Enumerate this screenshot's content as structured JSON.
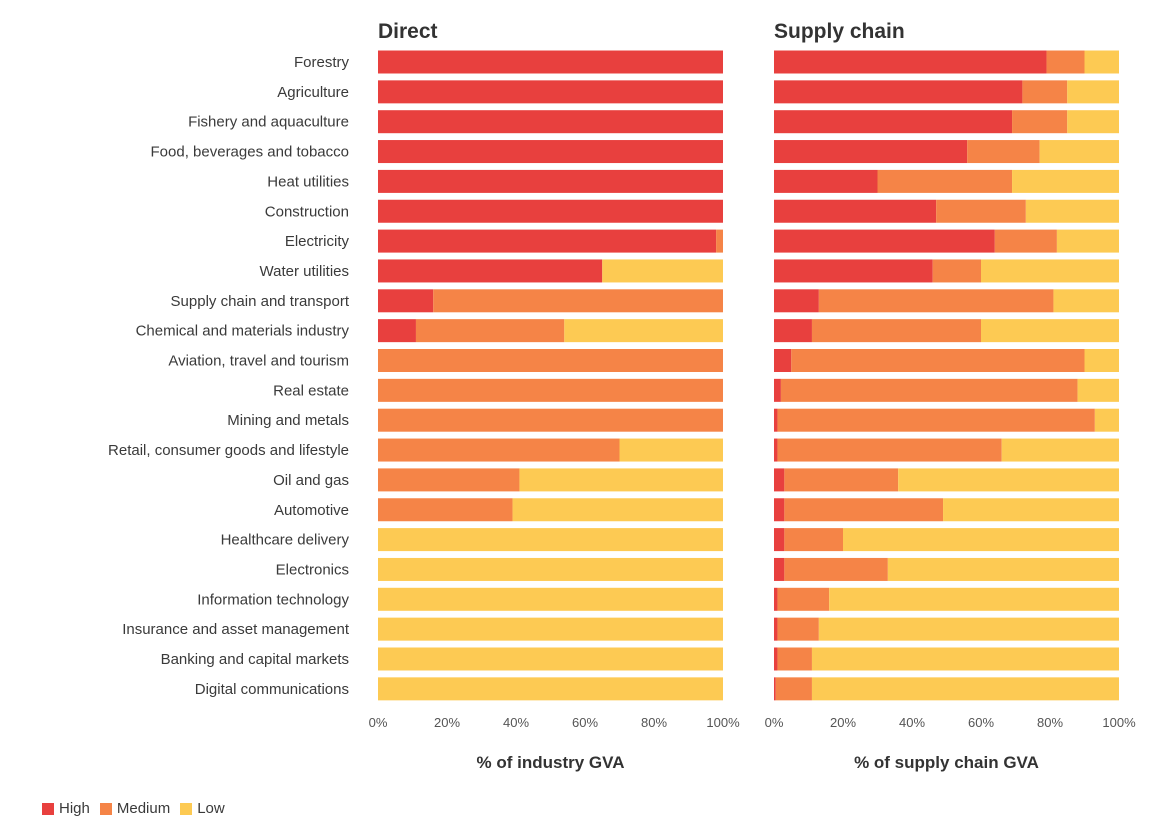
{
  "chart_data": [
    {
      "type": "bar",
      "orientation": "horizontal",
      "stacked": true,
      "title": "Direct",
      "xlabel": "% of industry GVA",
      "xlim": [
        0,
        100
      ],
      "xticks": [
        "0%",
        "20%",
        "40%",
        "60%",
        "80%",
        "100%"
      ],
      "categories": [
        "Forestry",
        "Agriculture",
        "Fishery and aquaculture",
        "Food, beverages and tobacco",
        "Heat utilities",
        "Construction",
        "Electricity",
        "Water utilities",
        "Supply chain and transport",
        "Chemical and materials industry",
        "Aviation, travel and tourism",
        "Real estate",
        "Mining and metals",
        "Retail, consumer goods and lifestyle",
        "Oil and gas",
        "Automotive",
        "Healthcare delivery",
        "Electronics",
        "Information technology",
        "Insurance and asset management",
        "Banking and capital markets",
        "Digital communications"
      ],
      "series": [
        {
          "name": "High",
          "values": [
            100,
            100,
            100,
            100,
            100,
            100,
            98,
            65,
            16,
            11,
            0,
            0,
            0,
            0,
            0,
            0,
            0,
            0,
            0,
            0,
            0,
            0
          ]
        },
        {
          "name": "Medium",
          "values": [
            0,
            0,
            0,
            0,
            0,
            0,
            2,
            0,
            84,
            43,
            100,
            100,
            100,
            70,
            41,
            39,
            0,
            0,
            0,
            0,
            0,
            0
          ]
        },
        {
          "name": "Low",
          "values": [
            0,
            0,
            0,
            0,
            0,
            0,
            0,
            35,
            0,
            46,
            0,
            0,
            0,
            30,
            59,
            61,
            100,
            100,
            100,
            100,
            100,
            100
          ]
        }
      ]
    },
    {
      "type": "bar",
      "orientation": "horizontal",
      "stacked": true,
      "title": "Supply chain",
      "xlabel": "% of supply chain GVA",
      "xlim": [
        0,
        100
      ],
      "xticks": [
        "0%",
        "20%",
        "40%",
        "60%",
        "80%",
        "100%"
      ],
      "categories": [
        "Forestry",
        "Agriculture",
        "Fishery and aquaculture",
        "Food, beverages and tobacco",
        "Heat utilities",
        "Construction",
        "Electricity",
        "Water utilities",
        "Supply chain and transport",
        "Chemical and materials industry",
        "Aviation, travel and tourism",
        "Real estate",
        "Mining and metals",
        "Retail, consumer goods and lifestyle",
        "Oil and gas",
        "Automotive",
        "Healthcare delivery",
        "Electronics",
        "Information technology",
        "Insurance and asset management",
        "Banking and capital markets",
        "Digital communications"
      ],
      "series": [
        {
          "name": "High",
          "values": [
            79,
            72,
            69,
            56,
            30,
            47,
            64,
            46,
            13,
            11,
            5,
            2,
            1,
            1,
            3,
            3,
            3,
            3,
            1,
            1,
            1,
            0.5
          ]
        },
        {
          "name": "Medium",
          "values": [
            11,
            13,
            16,
            21,
            39,
            26,
            18,
            14,
            68,
            49,
            85,
            86,
            92,
            65,
            33,
            46,
            17,
            30,
            15,
            12,
            10,
            10.5
          ]
        },
        {
          "name": "Low",
          "values": [
            10,
            15,
            15,
            23,
            31,
            27,
            18,
            40,
            19,
            40,
            10,
            12,
            7,
            34,
            64,
            51,
            80,
            67,
            84,
            87,
            89,
            89
          ]
        }
      ]
    }
  ],
  "legend": [
    {
      "name": "High",
      "color": "#e8403e"
    },
    {
      "name": "Medium",
      "color": "#f58447"
    },
    {
      "name": "Low",
      "color": "#fdca53"
    }
  ]
}
